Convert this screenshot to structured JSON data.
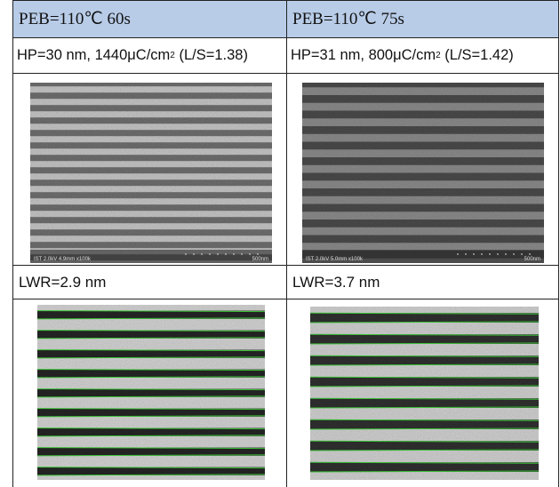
{
  "table": {
    "header": [
      "PEB=110℃ 60s",
      "PEB=110℃ 75s"
    ],
    "conditions": [
      {
        "pre": "HP=30 nm, 1440μC/cm",
        "sup": "2",
        "post": " (L/S=1.38)"
      },
      {
        "pre": "HP=31 nm, 800μC/cm",
        "sup": "2",
        "post": " (L/S=1.42)"
      }
    ],
    "sem_images": [
      {
        "info": "IST 2.0kV 4.9mm x100k",
        "scale": "500nm"
      },
      {
        "info": "IST 2.0kV 5.0mm x100k",
        "scale": "500nm"
      }
    ],
    "lwr": [
      "LWR=2.9 nm",
      "LWR=3.7 nm"
    ]
  }
}
